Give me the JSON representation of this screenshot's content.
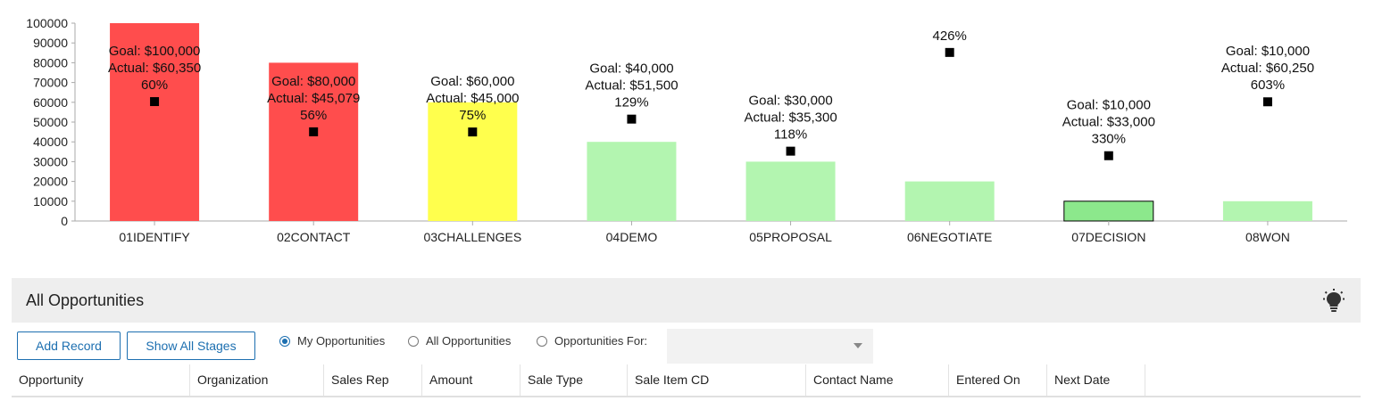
{
  "chart_data": {
    "type": "bar",
    "categories": [
      "01IDENTIFY",
      "02CONTACT",
      "03CHALLENGES",
      "04DEMO",
      "05PROPOSAL",
      "06NEGOTIATE",
      "07DECISION",
      "08WON"
    ],
    "series": [
      {
        "values": [
          100000,
          80000,
          60000,
          40000,
          30000,
          20000,
          10000,
          10000
        ]
      },
      {
        "values": [
          60350,
          45079,
          45000,
          51500,
          35300,
          85200,
          33000,
          60250
        ]
      }
    ],
    "bar_colors": [
      "#ff4d4d",
      "#ff4d4d",
      "#ffff4d",
      "#b3f5b0",
      "#b3f5b0",
      "#b3f5b0",
      "#8ce88c",
      "#b3f5b0"
    ],
    "labels": [
      [
        "Goal: $100,000",
        "Actual: $60,350",
        "60%"
      ],
      [
        "Goal: $80,000",
        "Actual: $45,079",
        "56%"
      ],
      [
        "Goal: $60,000",
        "Actual: $45,000",
        "75%"
      ],
      [
        "Goal: $40,000",
        "Actual: $51,500",
        "129%"
      ],
      [
        "Goal: $30,000",
        "Actual: $35,300",
        "118%"
      ],
      [
        "426%"
      ],
      [
        "Goal: $10,000",
        "Actual: $33,000",
        "330%"
      ],
      [
        "Goal: $10,000",
        "Actual: $60,250",
        "603%"
      ]
    ],
    "y_ticks": [
      "0",
      "10000",
      "20000",
      "30000",
      "40000",
      "50000",
      "60000",
      "70000",
      "80000",
      "90000",
      "100000"
    ],
    "ylim": [
      0,
      100000
    ],
    "xlabel": "",
    "ylabel": "",
    "title": ""
  },
  "panel": {
    "title": "All Opportunities",
    "icon": "lightbulb-icon"
  },
  "toolbar": {
    "add_record": "Add Record",
    "show_all_stages": "Show All Stages",
    "radio_my": "My Opportunities",
    "radio_all": "All Opportunities",
    "radio_for": "Opportunities For:",
    "selected_radio": "My Opportunities",
    "for_select_value": ""
  },
  "table": {
    "columns": [
      "Opportunity",
      "Organization",
      "Sales Rep",
      "Amount",
      "Sale Type",
      "Sale Item CD",
      "Contact Name",
      "Entered On",
      "Next Date"
    ]
  },
  "colors": {
    "accent": "#1c6fb0",
    "header_bg": "#eeeeee"
  }
}
